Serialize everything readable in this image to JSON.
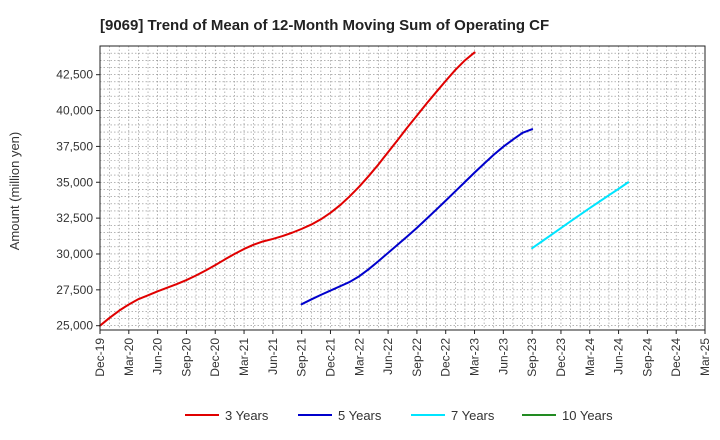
{
  "chart_data": {
    "type": "line",
    "title": "[9069]  Trend of Mean of 12-Month Moving Sum of Operating CF",
    "xlabel": "",
    "ylabel": "Amount (million yen)",
    "ylim": [
      24700,
      44500
    ],
    "y_ticks": [
      25000,
      27500,
      30000,
      32500,
      35000,
      37500,
      40000,
      42500
    ],
    "y_tick_labels": [
      "25,000",
      "27,500",
      "30,000",
      "32,500",
      "35,000",
      "37,500",
      "40,000",
      "42,500"
    ],
    "x_tick_labels": [
      "Dec-19",
      "Mar-20",
      "Jun-20",
      "Sep-20",
      "Dec-20",
      "Mar-21",
      "Jun-21",
      "Sep-21",
      "Dec-21",
      "Mar-22",
      "Jun-22",
      "Sep-22",
      "Dec-22",
      "Mar-23",
      "Jun-23",
      "Sep-23",
      "Dec-23",
      "Mar-24",
      "Jun-24",
      "Sep-24",
      "Dec-24",
      "Mar-25"
    ],
    "grid": true,
    "legend_position": "bottom",
    "series": [
      {
        "name": "3 Years",
        "color": "#e00000",
        "start_index": 0,
        "values": [
          25000,
          25550,
          26050,
          26480,
          26850,
          27120,
          27400,
          27650,
          27900,
          28180,
          28500,
          28850,
          29220,
          29620,
          30000,
          30350,
          30650,
          30880,
          31050,
          31250,
          31480,
          31750,
          32050,
          32420,
          32870,
          33400,
          34020,
          34700,
          35450,
          36250,
          37100,
          37950,
          38820,
          39650,
          40480,
          41280,
          42070,
          42830,
          43500,
          44050
        ]
      },
      {
        "name": "5 Years",
        "color": "#0000cc",
        "start_index": 21,
        "values": [
          26500,
          26830,
          27150,
          27450,
          27750,
          28050,
          28450,
          28950,
          29500,
          30080,
          30650,
          31230,
          31820,
          32450,
          33080,
          33720,
          34370,
          35020,
          35670,
          36300,
          36920,
          37480,
          37980,
          38450,
          38700
        ]
      },
      {
        "name": "7 Years",
        "color": "#00e5ff",
        "start_index": 45,
        "values": [
          30400,
          30870,
          31340,
          31810,
          32280,
          32740,
          33200,
          33650,
          34100,
          34540,
          35000
        ]
      },
      {
        "name": "10 Years",
        "color": "#228b22",
        "start_index": 0,
        "values": []
      }
    ]
  }
}
